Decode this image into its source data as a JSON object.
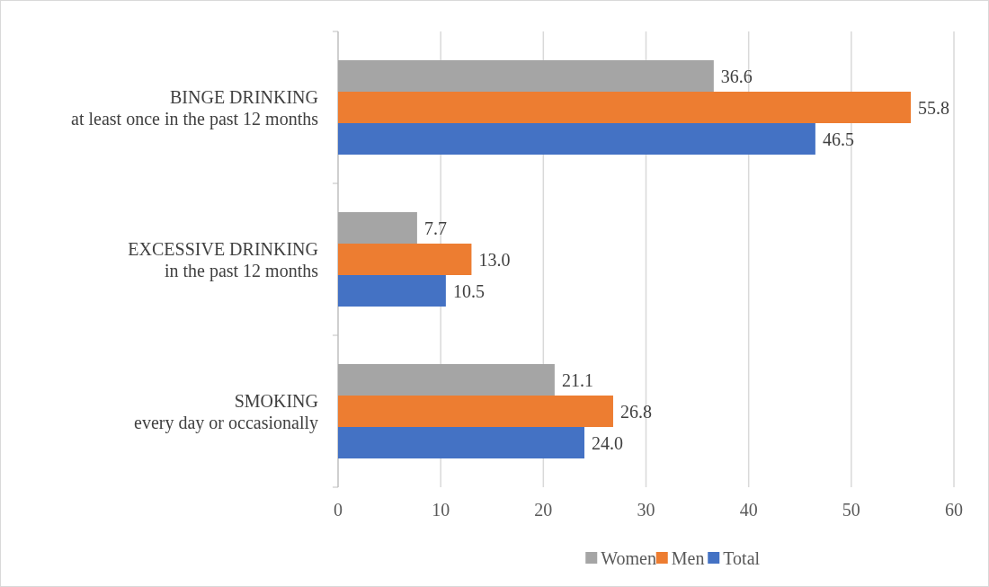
{
  "chart_data": {
    "type": "bar",
    "orientation": "horizontal",
    "categories": [
      "BINGE DRINKING\nat least once in the past 12 months",
      "EXCESSIVE DRINKING\nin the past 12 months",
      "SMOKING\nevery day or occasionally"
    ],
    "series": [
      {
        "name": "Women",
        "color": "#a5a5a5",
        "values": [
          36.6,
          7.7,
          21.1
        ],
        "value_labels": [
          "36.6",
          "7.7",
          "21.1"
        ]
      },
      {
        "name": "Men",
        "color": "#ed7d31",
        "values": [
          55.8,
          13.0,
          26.8
        ],
        "value_labels": [
          "55.8",
          "13.0",
          "26.8"
        ]
      },
      {
        "name": "Total",
        "color": "#4472c4",
        "values": [
          46.5,
          10.5,
          24.0
        ],
        "value_labels": [
          "46.5",
          "10.5",
          "24.0"
        ]
      }
    ],
    "xlim": [
      0,
      60
    ],
    "xticks": [
      0,
      10,
      20,
      30,
      40,
      50,
      60
    ],
    "grid": "x",
    "legend": "bottom"
  }
}
